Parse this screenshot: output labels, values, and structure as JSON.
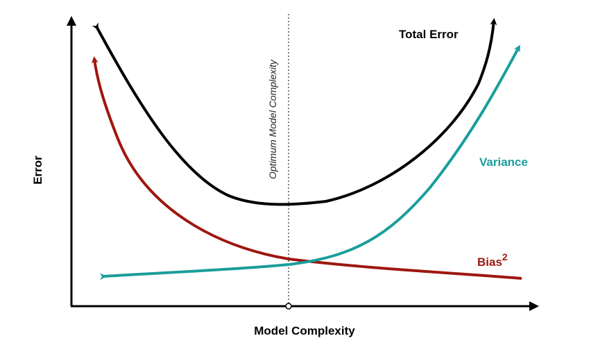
{
  "axes": {
    "x_label": "Model Complexity",
    "y_label": "Error"
  },
  "annotation": {
    "optimum_label": "Optimum Model Complexity"
  },
  "curves": {
    "total_error": {
      "label": "Total Error",
      "color": "#000000"
    },
    "variance": {
      "label": "Variance",
      "color": "#1a9e9b"
    },
    "bias": {
      "label": "Bias",
      "superscript": "2",
      "color": "#9e1710"
    }
  },
  "colors": {
    "axis": "#000000",
    "optimum_line": "#555555"
  }
}
